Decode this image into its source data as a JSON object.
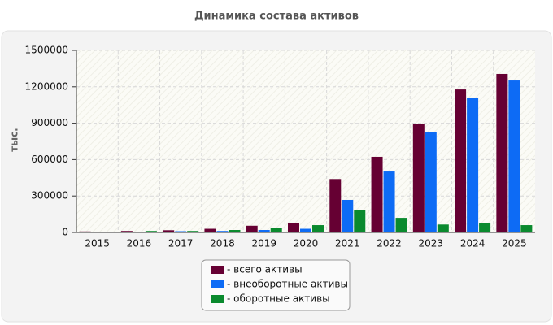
{
  "chart_data": {
    "type": "bar",
    "title": "Динамика состава активов",
    "y_label": "тыс.",
    "categories": [
      "2015",
      "2016",
      "2017",
      "2018",
      "2019",
      "2020",
      "2021",
      "2022",
      "2023",
      "2024",
      "2025"
    ],
    "series": [
      {
        "name": "- всего активы",
        "color": "#660033",
        "values": [
          8000,
          12000,
          18000,
          30000,
          55000,
          80000,
          440000,
          623000,
          897000,
          1178000,
          1306000
        ]
      },
      {
        "name": "- внеоборотные активы",
        "color": "#0d6bf5",
        "values": [
          4000,
          5000,
          10000,
          12000,
          20000,
          30000,
          268000,
          502000,
          830000,
          1105000,
          1252000
        ]
      },
      {
        "name": "- оборотные активы",
        "color": "#0a8a2e",
        "values": [
          5000,
          12000,
          12000,
          20000,
          40000,
          60000,
          181000,
          120000,
          65000,
          80000,
          60000
        ]
      }
    ],
    "ylim": [
      0,
      1500000
    ],
    "yticks": [
      0,
      300000,
      600000,
      900000,
      1200000,
      1500000
    ],
    "grid": true
  }
}
